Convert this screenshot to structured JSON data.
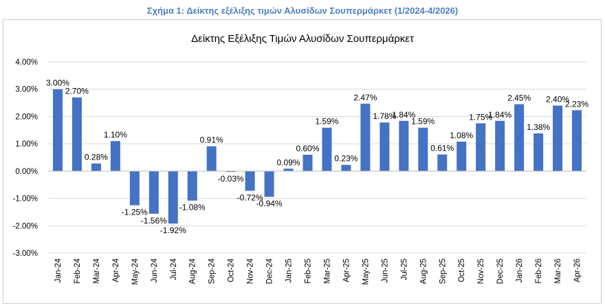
{
  "caption": "Σχήμα 1: Δείκτης εξέλιξης τιμών Αλυσίδων Σουπερμάρκετ (1/2024-4/2026)",
  "chart_data": {
    "type": "bar",
    "title": "Δείκτης Εξέλιξης Τιμών Αλυσίδων Σουπερμάρκετ",
    "xlabel": "",
    "ylabel": "",
    "categories": [
      "Jan-24",
      "Feb-24",
      "Mar-24",
      "Apr-24",
      "May-24",
      "Jun-24",
      "Jul-24",
      "Aug-24",
      "Sep-24",
      "Oct-24",
      "Nov-24",
      "Dec-24",
      "Jan-25",
      "Feb-25",
      "Mar-25",
      "Apr-25",
      "May-25",
      "Jun-25",
      "Jul-25",
      "Aug-25",
      "Sep-25",
      "Oct-25",
      "Nov-25",
      "Dec-25",
      "Jan-26",
      "Feb-26",
      "Mar-26",
      "Apr-26"
    ],
    "values": [
      3.0,
      2.7,
      0.28,
      1.1,
      -1.25,
      -1.56,
      -1.92,
      -1.08,
      0.91,
      -0.03,
      -0.72,
      -0.94,
      0.09,
      0.6,
      1.59,
      0.23,
      2.47,
      1.78,
      1.84,
      1.59,
      0.61,
      1.08,
      1.75,
      1.84,
      2.45,
      1.38,
      2.4,
      2.23
    ],
    "data_labels": [
      "3.00%",
      "2.70%",
      "0.28%",
      "1.10%",
      "-1.25%",
      "-1.56%",
      "-1.92%",
      "-1.08%",
      "0.91%",
      "-0.03%",
      "-0.72%",
      "-0.94%",
      "0.09%",
      "0.60%",
      "1.59%",
      "0.23%",
      "2.47%",
      "1.78%",
      "1.84%",
      "1.59%",
      "0.61%",
      "1.08%",
      "1.75%",
      "1.84%",
      "2.45%",
      "1.38%",
      "2.40%",
      "2.23%"
    ],
    "y_ticks": [
      "4.00%",
      "3.00%",
      "2.00%",
      "1.00%",
      "0.00%",
      "-1.00%",
      "-2.00%",
      "-3.00%"
    ],
    "ylim": [
      -3,
      4
    ],
    "bar_color": "#4472c4",
    "grid": true,
    "legend": "none"
  }
}
